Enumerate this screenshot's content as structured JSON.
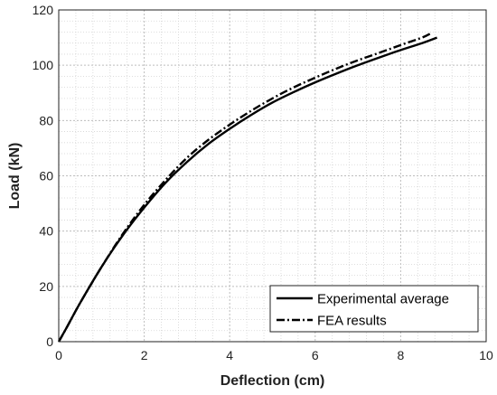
{
  "chart_data": {
    "type": "line",
    "title": "",
    "xlabel": "Deflection (cm)",
    "ylabel": "Load (kN)",
    "xlim": [
      0,
      10
    ],
    "ylim": [
      0,
      120
    ],
    "xticks": [
      "0",
      "2",
      "4",
      "6",
      "8",
      "10"
    ],
    "yticks": [
      "0",
      "20",
      "40",
      "60",
      "80",
      "100",
      "120"
    ],
    "grid": true,
    "minor_grid": true,
    "legend_position": "bottom-right",
    "series": [
      {
        "name": "Experimental average",
        "style": "solid",
        "color": "#000000",
        "x": [
          0,
          0.2,
          0.5,
          1.0,
          1.5,
          2.0,
          2.5,
          3.0,
          3.5,
          4.0,
          4.5,
          5.0,
          5.5,
          6.0,
          6.5,
          7.0,
          7.5,
          8.0,
          8.5,
          8.85
        ],
        "y": [
          0,
          5.5,
          14,
          27,
          38.5,
          48.5,
          57.5,
          65,
          71.5,
          77,
          82,
          86.5,
          90.3,
          93.8,
          97,
          100,
          102.8,
          105.5,
          108,
          110
        ]
      },
      {
        "name": "FEA results",
        "style": "dashdot",
        "color": "#000000",
        "x": [
          0,
          0.2,
          0.5,
          1.0,
          1.5,
          2.0,
          2.5,
          3.0,
          3.5,
          4.0,
          4.5,
          5.0,
          5.5,
          6.0,
          6.5,
          7.0,
          7.5,
          8.0,
          8.5,
          8.7
        ],
        "y": [
          0,
          5.5,
          14,
          27,
          39,
          49.5,
          58.5,
          66.5,
          73,
          78.5,
          83.5,
          88,
          92,
          95.5,
          98.8,
          101.8,
          104.5,
          107.3,
          110,
          111.5
        ]
      }
    ]
  }
}
